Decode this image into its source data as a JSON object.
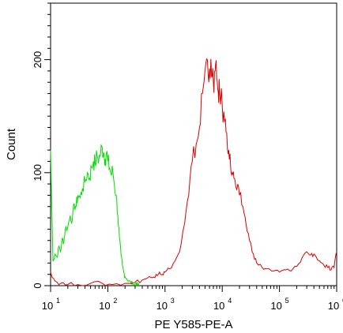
{
  "chart_data": {
    "type": "line",
    "xlabel": "PE Y585-PE-A",
    "ylabel": "Count",
    "xscale": "log",
    "xlim": [
      10,
      1000000
    ],
    "ylim": [
      0,
      250
    ],
    "x_tick_labels": [
      "10",
      "10",
      "10",
      "10",
      "10",
      "10"
    ],
    "x_tick_exponents": [
      "1",
      "2",
      "3",
      "4",
      "5",
      "6"
    ],
    "x_tick_values": [
      10,
      100,
      1000,
      10000,
      100000,
      1000000
    ],
    "y_tick_labels": [
      "0",
      "100",
      "200"
    ],
    "y_tick_values": [
      0,
      100,
      200
    ],
    "grid": false,
    "legend": "none",
    "series": [
      {
        "color": "#00dd00",
        "x": [
          10,
          11,
          12,
          13,
          14,
          15,
          16,
          17,
          18,
          20,
          22,
          24,
          26,
          28,
          30,
          33,
          36,
          40,
          44,
          48,
          52,
          56,
          60,
          65,
          70,
          75,
          80,
          85,
          90,
          95,
          100,
          108,
          115,
          122,
          130,
          140,
          150,
          160,
          170,
          180,
          190,
          200,
          215,
          230,
          250,
          270,
          290,
          310,
          330,
          350
        ],
        "y": [
          120,
          22,
          28,
          25,
          35,
          30,
          42,
          38,
          50,
          52,
          62,
          58,
          72,
          70,
          80,
          78,
          86,
          92,
          100,
          95,
          105,
          110,
          108,
          115,
          112,
          118,
          122,
          118,
          112,
          118,
          110,
          104,
          98,
          102,
          90,
          80,
          62,
          42,
          28,
          18,
          12,
          8,
          6,
          4,
          3,
          2,
          1,
          2,
          1,
          0
        ]
      },
      {
        "color": "#dd0000",
        "x": [
          10,
          12,
          15,
          20,
          30,
          50,
          80,
          120,
          200,
          300,
          400,
          500,
          600,
          700,
          800,
          900,
          1000,
          1200,
          1500,
          1800,
          2200,
          2600,
          3000,
          3500,
          4000,
          4500,
          5000,
          5500,
          6000,
          6500,
          7000,
          7500,
          8000,
          8500,
          9000,
          10000,
          11000,
          12000,
          13000,
          14000,
          15000,
          16000,
          18000,
          20000,
          23000,
          26000,
          30000,
          35000,
          40000,
          50000,
          60000,
          80000,
          100000,
          130000,
          160000,
          200000,
          250000,
          300000,
          350000,
          400000,
          500000,
          600000,
          700000,
          800000,
          900000,
          1000000
        ],
        "y": [
          12,
          4,
          2,
          1,
          1,
          2,
          2,
          1,
          2,
          3,
          5,
          7,
          7,
          10,
          12,
          10,
          12,
          15,
          22,
          30,
          55,
          80,
          110,
          125,
          140,
          170,
          190,
          200,
          192,
          185,
          180,
          190,
          182,
          172,
          170,
          160,
          145,
          135,
          120,
          105,
          100,
          95,
          85,
          80,
          70,
          55,
          40,
          28,
          20,
          16,
          15,
          13,
          12,
          14,
          13,
          17,
          25,
          30,
          27,
          28,
          22,
          18,
          16,
          14,
          16,
          30
        ]
      }
    ]
  }
}
